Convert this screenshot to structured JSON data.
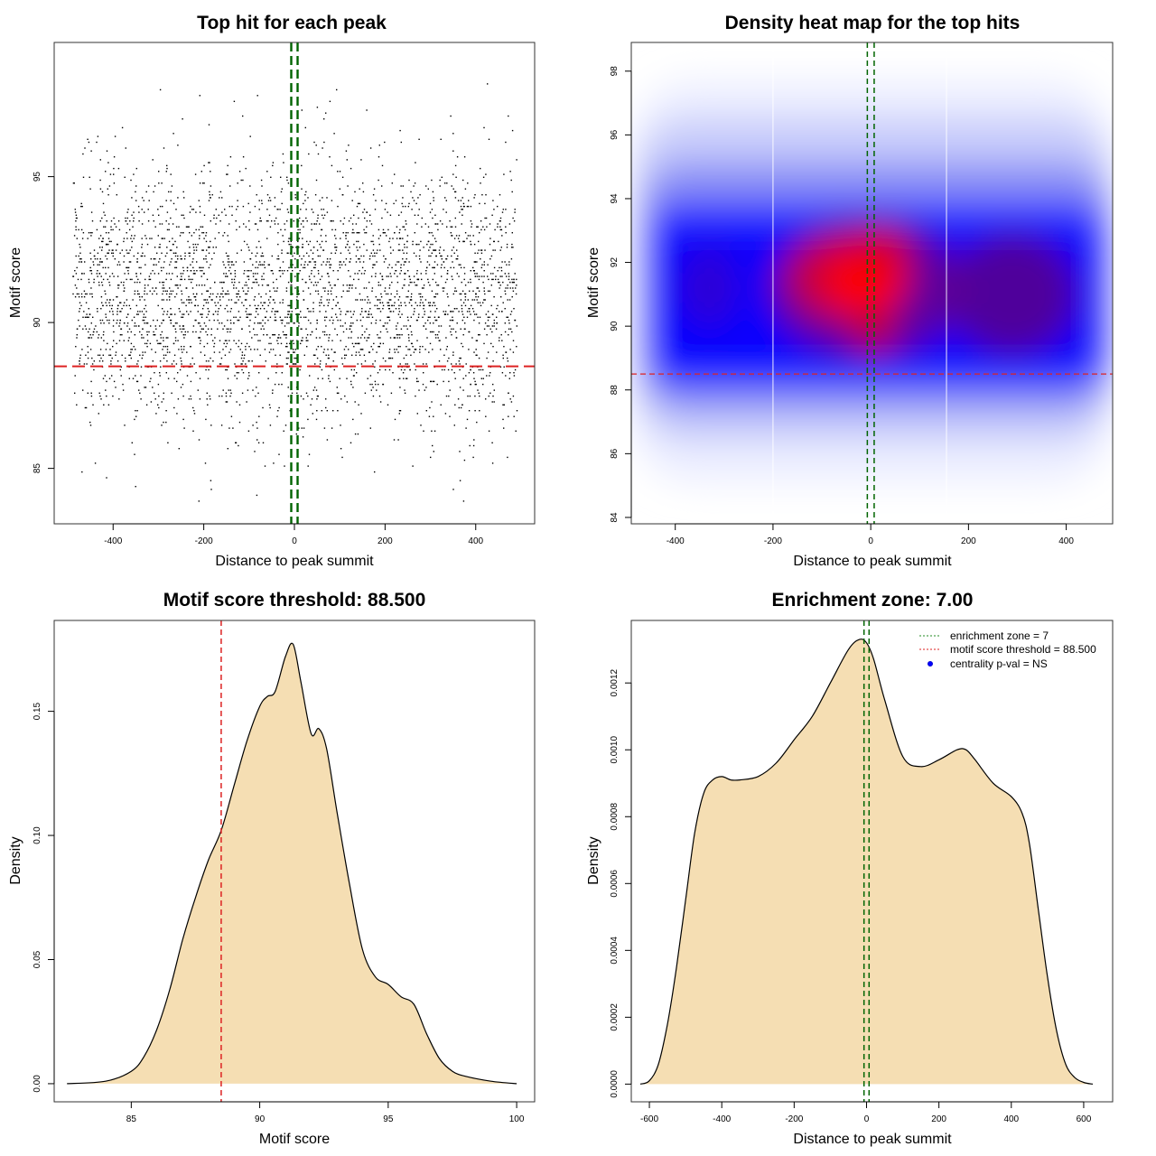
{
  "chart_data": [
    {
      "id": "scatter",
      "type": "scatter",
      "title": "Top hit for each peak",
      "xlabel": "Distance to peak summit",
      "ylabel": "Motif score",
      "xlim": [
        -530,
        530
      ],
      "ylim": [
        83.1,
        99.6
      ],
      "xticks": [
        -400,
        -200,
        0,
        200,
        400
      ],
      "yticks": [
        85,
        90,
        95
      ],
      "points_count": 3500,
      "x_range": [
        -490,
        490
      ],
      "y_mean": 91.0,
      "y_sd": 2.2,
      "y_min": 83.7,
      "y_max": 98.3,
      "hlines": [
        {
          "y": 88.5,
          "color": "#dd2222",
          "style": "dashed"
        }
      ],
      "vlines": [
        {
          "x": -7,
          "color": "#006400",
          "style": "dashed"
        },
        {
          "x": 7,
          "color": "#006400",
          "style": "dashed"
        }
      ]
    },
    {
      "id": "heatmap",
      "type": "heatmap",
      "title": "Density heat map for the top hits",
      "xlabel": "Distance to peak summit",
      "ylabel": "Motif score",
      "xlim": [
        -490,
        495
      ],
      "ylim": [
        83.8,
        98.9
      ],
      "xticks": [
        -400,
        -200,
        0,
        200,
        400
      ],
      "yticks": [
        84,
        86,
        88,
        90,
        92,
        94,
        96,
        98
      ],
      "density_peak": {
        "x": -20,
        "y": 91.4
      },
      "hlines": [
        {
          "y": 88.5,
          "color": "#dd2222",
          "style": "dashed"
        }
      ],
      "vlines": [
        {
          "x": -7,
          "color": "#006400",
          "style": "dashed"
        },
        {
          "x": 7,
          "color": "#006400",
          "style": "dashed"
        }
      ]
    },
    {
      "id": "scoreDensity",
      "type": "area",
      "title": "Motif score threshold: 88.500",
      "xlabel": "Motif score",
      "ylabel": "Density",
      "xlim": [
        82,
        100.7
      ],
      "ylim": [
        -0.0073,
        0.1866
      ],
      "xticks": [
        85,
        90,
        95,
        100
      ],
      "yticks": [
        0.0,
        0.05,
        0.1,
        0.15
      ],
      "ytick_labels": [
        "0.00",
        "0.05",
        "0.10",
        "0.15"
      ],
      "fill_color": "#f5deb3",
      "x": [
        82.5,
        84,
        85,
        85.5,
        86,
        86.5,
        87,
        87.5,
        88,
        88.5,
        89,
        89.5,
        90,
        90.3,
        90.6,
        91,
        91.3,
        91.6,
        92,
        92.3,
        92.6,
        93,
        93.5,
        94,
        94.5,
        95,
        95.5,
        96,
        96.5,
        97,
        97.5,
        98,
        99,
        100
      ],
      "y": [
        0.0,
        0.001,
        0.005,
        0.011,
        0.022,
        0.038,
        0.058,
        0.075,
        0.09,
        0.102,
        0.12,
        0.138,
        0.152,
        0.156,
        0.158,
        0.172,
        0.177,
        0.162,
        0.141,
        0.143,
        0.135,
        0.11,
        0.08,
        0.054,
        0.043,
        0.04,
        0.035,
        0.032,
        0.02,
        0.01,
        0.005,
        0.003,
        0.001,
        0.0
      ],
      "vlines": [
        {
          "x": 88.5,
          "color": "#dd2222",
          "style": "dashed"
        }
      ]
    },
    {
      "id": "distDensity",
      "type": "area",
      "title": "Enrichment zone: 7.00",
      "xlabel": "Distance to peak summit",
      "ylabel": "Density",
      "xlim": [
        -650,
        680
      ],
      "ylim": [
        -5.3e-05,
        0.001387
      ],
      "xticks": [
        -600,
        -400,
        -200,
        0,
        200,
        400,
        600
      ],
      "yticks": [
        0.0,
        0.0002,
        0.0004,
        0.0006,
        0.0008,
        0.001,
        0.0012
      ],
      "ytick_labels": [
        "0.0000",
        "0.0002",
        "0.0004",
        "0.0006",
        "0.0008",
        "0.0010",
        "0.0012"
      ],
      "fill_color": "#f5deb3",
      "x": [
        -625,
        -600,
        -575,
        -550,
        -525,
        -500,
        -475,
        -450,
        -425,
        -400,
        -375,
        -350,
        -300,
        -250,
        -200,
        -150,
        -100,
        -50,
        -20,
        0,
        20,
        50,
        100,
        150,
        200,
        250,
        275,
        300,
        350,
        400,
        430,
        450,
        475,
        500,
        525,
        550,
        575,
        600,
        625
      ],
      "y": [
        0.0,
        1e-05,
        6e-05,
        0.00018,
        0.00035,
        0.00055,
        0.00075,
        0.00087,
        0.00091,
        0.00092,
        0.00091,
        0.00091,
        0.00092,
        0.00096,
        0.00103,
        0.0011,
        0.0012,
        0.0013,
        0.00133,
        0.00132,
        0.00127,
        0.00115,
        0.00098,
        0.00095,
        0.00097,
        0.001,
        0.001,
        0.00097,
        0.0009,
        0.00086,
        0.00081,
        0.00072,
        0.00052,
        0.00032,
        0.00016,
        6e-05,
        2e-05,
        5e-06,
        0.0
      ],
      "vlines": [
        {
          "x": -7,
          "color": "#006400",
          "style": "dashed"
        },
        {
          "x": 7,
          "color": "#006400",
          "style": "dashed"
        }
      ],
      "legend": [
        {
          "label": "enrichment zone = 7",
          "type": "dotted-line",
          "color": "#228b22"
        },
        {
          "label": "motif score threshold = 88.500",
          "type": "dotted-line",
          "color": "#dd2222"
        },
        {
          "label": "centrality p-val = NS",
          "type": "point",
          "color": "#0000ff"
        }
      ],
      "legend_position": "top-right"
    }
  ]
}
